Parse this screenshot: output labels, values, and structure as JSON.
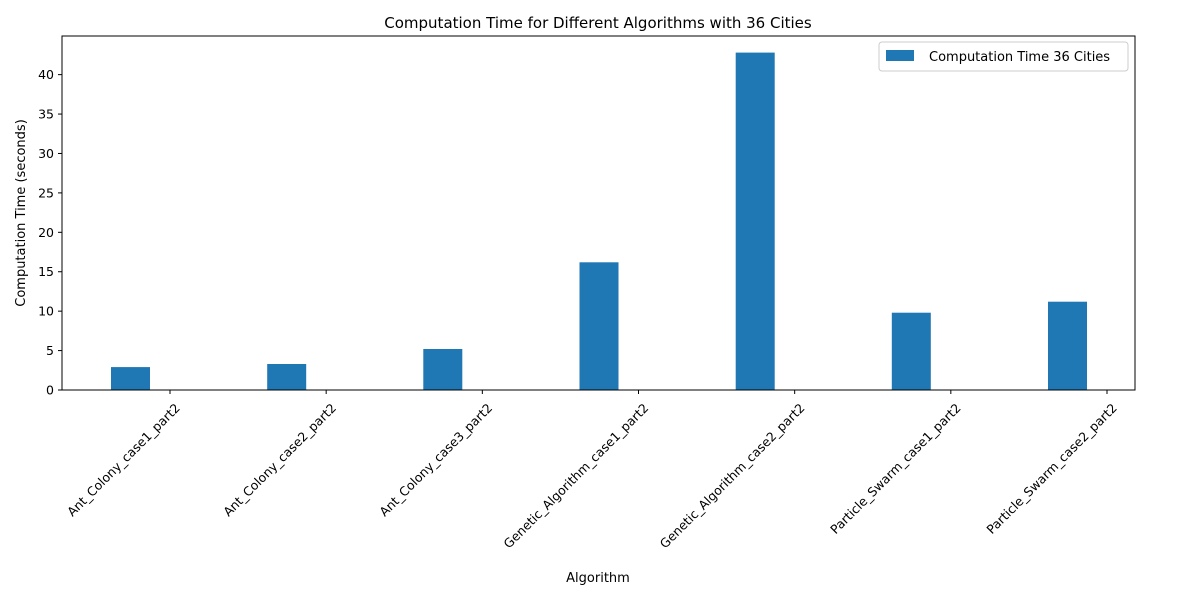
{
  "chart_data": {
    "type": "bar",
    "title": "Computation Time for Different Algorithms with 36 Cities",
    "xlabel": "Algorithm",
    "ylabel": "Computation Time (seconds)",
    "categories": [
      "Ant_Colony_case1_part2",
      "Ant_Colony_case2_part2",
      "Ant_Colony_case3_part2",
      "Genetic_Algorithm_case1_part2",
      "Genetic_Algorithm_case2_part2",
      "Particle_Swarm_case1_part2",
      "Particle_Swarm_case2_part2"
    ],
    "series": [
      {
        "name": "Computation Time 36 Cities",
        "values": [
          2.9,
          3.3,
          5.2,
          16.2,
          42.8,
          9.8,
          11.2
        ],
        "color": "#1f77b4"
      }
    ],
    "yticks": [
      0,
      5,
      10,
      15,
      20,
      25,
      30,
      35,
      40
    ],
    "ylim": [
      0,
      44.9
    ],
    "xtick_rotation_deg": 45,
    "legend_position": "top-right",
    "grid": false
  }
}
